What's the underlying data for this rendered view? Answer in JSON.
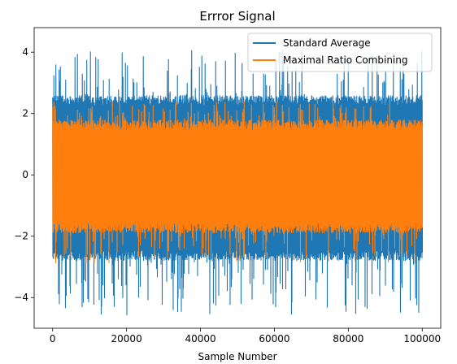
{
  "chart_data": {
    "type": "line",
    "title": "Errror Signal",
    "xlabel": "Sample Number",
    "ylabel": "",
    "xlim": [
      -5000,
      105000
    ],
    "ylim": [
      -5.0,
      4.8
    ],
    "xticks": [
      0,
      20000,
      40000,
      60000,
      80000,
      100000
    ],
    "xtick_labels": [
      "0",
      "20000",
      "40000",
      "60000",
      "80000",
      "100000"
    ],
    "yticks": [
      -4,
      -2,
      0,
      2,
      4
    ],
    "ytick_labels": [
      "−4",
      "−2",
      "0",
      "2",
      "4"
    ],
    "grid": false,
    "legend_position": "top-right",
    "series": [
      {
        "name": "Standard Average",
        "color": "#1f77b4",
        "n_samples": 100000,
        "x_range": [
          0,
          100000
        ],
        "mean": 0.0,
        "band": [
          -2.8,
          2.6
        ],
        "peak_range": [
          -4.6,
          4.1
        ]
      },
      {
        "name": "Maximal Ratio Combining",
        "color": "#ff7f0e",
        "n_samples": 100000,
        "x_range": [
          0,
          100000
        ],
        "mean": 0.0,
        "band": [
          -1.9,
          1.8
        ],
        "peak_range": [
          -2.9,
          2.4
        ]
      }
    ]
  }
}
